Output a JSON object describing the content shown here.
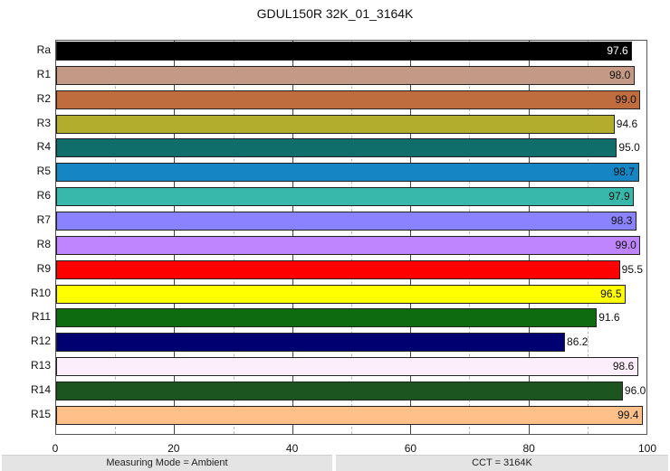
{
  "chart_data": {
    "type": "bar",
    "orientation": "horizontal",
    "title": "GDUL150R 32K_01_3164K",
    "xlabel": "",
    "ylabel": "",
    "xlim": [
      0,
      100
    ],
    "xticks": [
      0,
      20,
      40,
      60,
      80,
      100
    ],
    "grid": true,
    "categories": [
      "Ra",
      "R1",
      "R2",
      "R3",
      "R4",
      "R5",
      "R6",
      "R7",
      "R8",
      "R9",
      "R10",
      "R11",
      "R12",
      "R13",
      "R14",
      "R15"
    ],
    "values": [
      97.6,
      98.0,
      99.0,
      94.6,
      95.0,
      98.7,
      97.9,
      98.3,
      99.0,
      95.5,
      96.5,
      91.6,
      86.2,
      98.6,
      96.0,
      99.4
    ],
    "value_labels": [
      "97.6",
      "98.0",
      "99.0",
      "94.6",
      "95.0",
      "98.7",
      "97.9",
      "98.3",
      "99.0",
      "95.5",
      "96.5",
      "91.6",
      "86.2",
      "98.6",
      "96.0",
      "99.4"
    ],
    "colors": [
      "#000000",
      "#c49a86",
      "#bf6d3e",
      "#b3ad2e",
      "#0f6e6a",
      "#1685c4",
      "#37b8aa",
      "#8a82ff",
      "#bf84ff",
      "#ff0000",
      "#ffff00",
      "#0f6b0f",
      "#000070",
      "#fdeefc",
      "#1c5520",
      "#ffc08a"
    ],
    "label_colors": [
      "#ffffff",
      "#111111",
      "#111111",
      "#111111",
      "#111111",
      "#111111",
      "#111111",
      "#111111",
      "#111111",
      "#111111",
      "#111111",
      "#111111",
      "#111111",
      "#111111",
      "#111111",
      "#111111"
    ],
    "label_inside": [
      true,
      true,
      true,
      false,
      false,
      true,
      true,
      true,
      true,
      false,
      true,
      false,
      false,
      true,
      false,
      true
    ]
  },
  "footer": {
    "left": "Measuring Mode = Ambient",
    "right": "CCT = 3164K"
  }
}
